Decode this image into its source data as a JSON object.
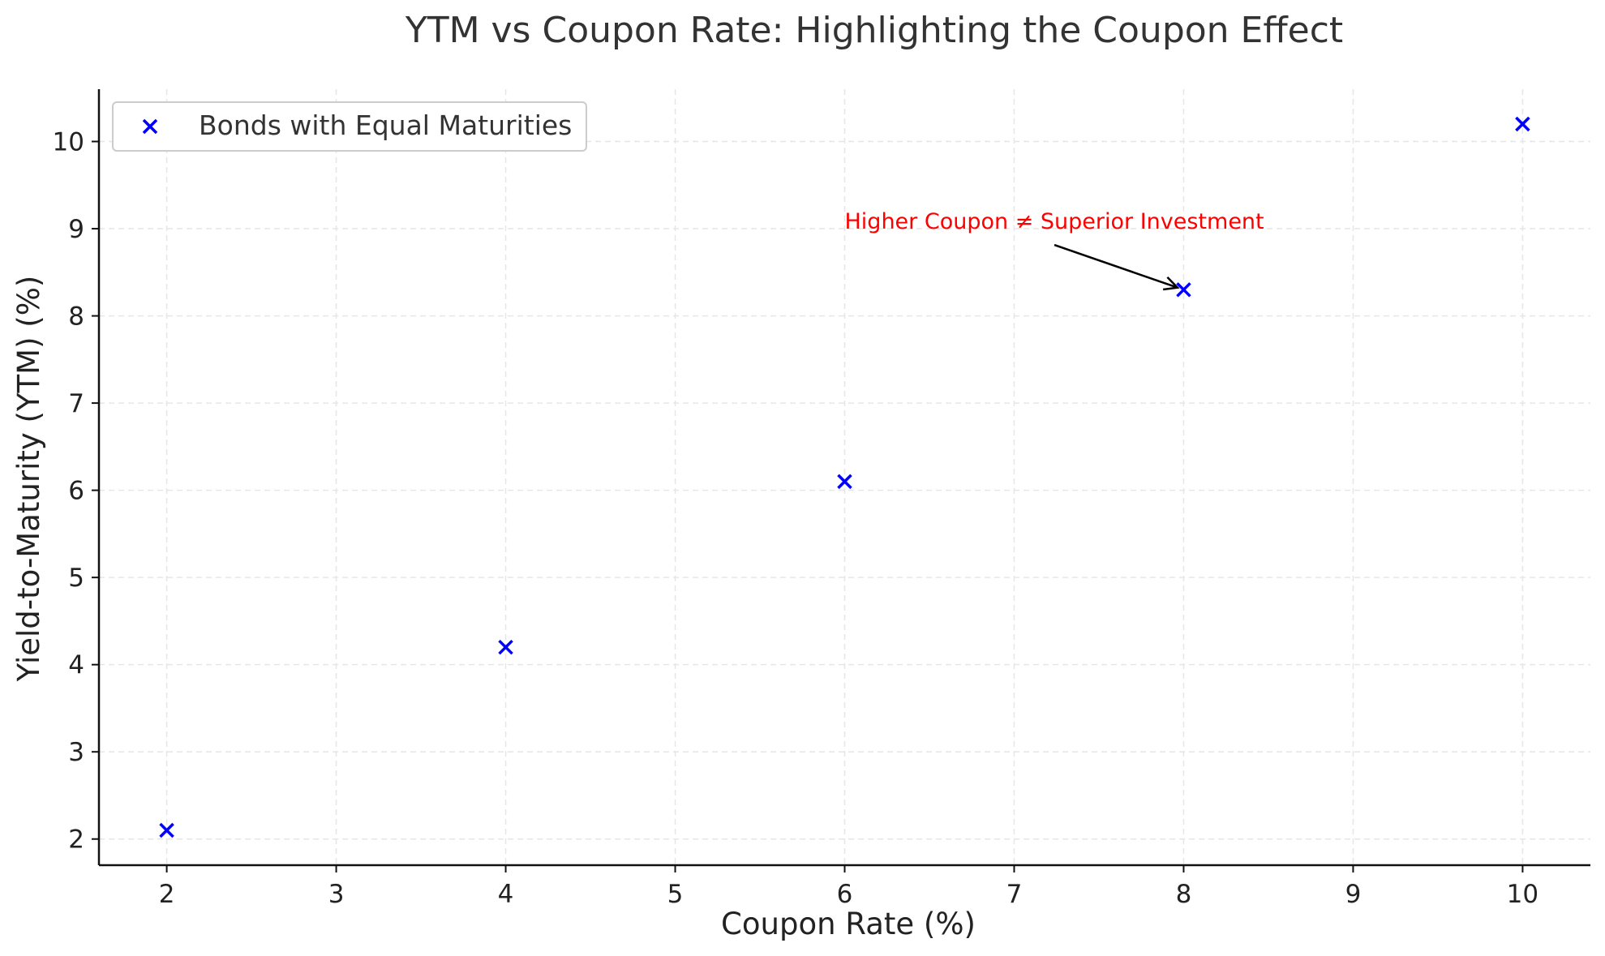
{
  "chart_data": {
    "type": "scatter",
    "title": "YTM vs Coupon Rate: Highlighting the Coupon Effect",
    "xlabel": "Coupon Rate (%)",
    "ylabel": "Yield-to-Maturity (YTM) (%)",
    "xlim": [
      1.6,
      10.4
    ],
    "ylim": [
      1.7,
      10.6
    ],
    "xticks": [
      2,
      3,
      4,
      5,
      6,
      7,
      8,
      9,
      10
    ],
    "yticks": [
      2,
      3,
      4,
      5,
      6,
      7,
      8,
      9,
      10
    ],
    "grid": true,
    "legend_position": "top-left",
    "series": [
      {
        "name": "Bonds with Equal Maturities",
        "marker": "x",
        "color": "#0000ff",
        "x": [
          2,
          4,
          6,
          8,
          10
        ],
        "y": [
          2.1,
          4.2,
          6.1,
          8.3,
          10.2
        ]
      }
    ],
    "annotations": [
      {
        "text": "Higher Coupon ≠ Superior Investment",
        "color": "#ff0000",
        "text_x": 6,
        "text_y": 9,
        "arrow_target_x": 8,
        "arrow_target_y": 8.3
      }
    ]
  }
}
